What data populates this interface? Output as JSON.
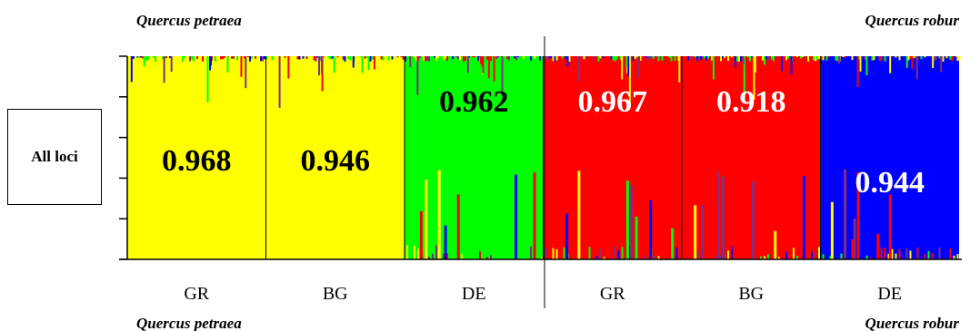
{
  "chart_data": {
    "type": "bar",
    "title": "",
    "xlabel": "",
    "ylabel": "",
    "ylim": [
      0,
      1
    ],
    "row_label": "All loci",
    "species_labels": {
      "top_left": "Quercus petraea",
      "top_right": "Quercus robur",
      "bottom_left": "Quercus petraea",
      "bottom_right": "Quercus robur"
    },
    "categories": [
      "GR",
      "BG",
      "DE",
      "GR",
      "BG",
      "DE"
    ],
    "groups": [
      {
        "label": "GR",
        "species": "Quercus petraea",
        "color": "#ffff00",
        "value": 0.968,
        "value_text": "0.968",
        "value_color": "#000000"
      },
      {
        "label": "BG",
        "species": "Quercus petraea",
        "color": "#ffff00",
        "value": 0.946,
        "value_text": "0.946",
        "value_color": "#000000"
      },
      {
        "label": "DE",
        "species": "Quercus petraea",
        "color": "#00ff00",
        "value": 0.962,
        "value_text": "0.962",
        "value_color": "#000000"
      },
      {
        "label": "GR",
        "species": "Quercus robur",
        "color": "#ff0000",
        "value": 0.967,
        "value_text": "0.967",
        "value_color": "#ffffff"
      },
      {
        "label": "BG",
        "species": "Quercus robur",
        "color": "#ff0000",
        "value": 0.918,
        "value_text": "0.918",
        "value_color": "#ffffff"
      },
      {
        "label": "DE",
        "species": "Quercus robur",
        "color": "#0000ff",
        "value": 0.944,
        "value_text": "0.944",
        "value_color": "#ffffff"
      }
    ],
    "noise_colors": [
      "#ff0000",
      "#00ff00",
      "#0000ff",
      "#ffff00",
      "#7f2f7f"
    ],
    "grid": false,
    "legend": "none"
  }
}
